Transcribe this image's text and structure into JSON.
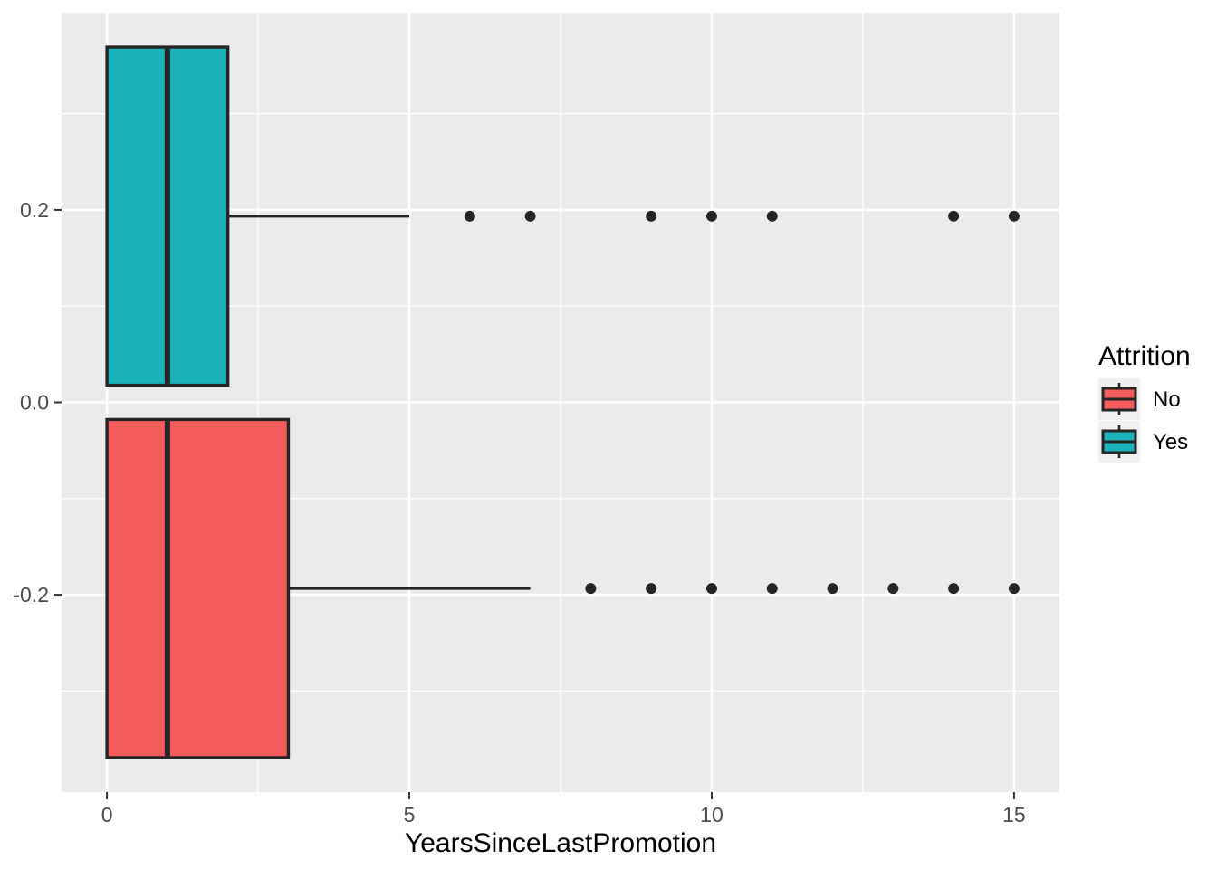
{
  "chart_data": {
    "type": "boxplot",
    "orientation": "horizontal",
    "title": "",
    "xlabel": "YearsSinceLastPromotion",
    "ylabel": "",
    "xlim": [
      -0.75,
      15.75
    ],
    "ylim": [
      -0.405,
      0.405
    ],
    "x_major_ticks": [
      0,
      5,
      10,
      15
    ],
    "x_minor_ticks": [
      2.5,
      7.5,
      12.5
    ],
    "y_major_ticks": [
      {
        "value": 0.2,
        "label": "0.2"
      },
      {
        "value": 0.0,
        "label": "0.0"
      },
      {
        "value": -0.2,
        "label": "-0.2"
      }
    ],
    "y_minor_ticks": [
      0.3,
      0.1,
      -0.1,
      -0.3
    ],
    "grid": true,
    "series": [
      {
        "name": "Yes",
        "fill": "#1BB3B9",
        "y_center": 0.1935,
        "box_half_height": 0.1757,
        "min": 0,
        "q1": 0,
        "median": 1,
        "q3": 2,
        "whisker_max": 5,
        "outliers": [
          6,
          7,
          9,
          10,
          11,
          14,
          15
        ]
      },
      {
        "name": "No",
        "fill": "#F45B5A",
        "y_center": -0.1935,
        "box_half_height": 0.1757,
        "min": 0,
        "q1": 0,
        "median": 1,
        "q3": 3,
        "whisker_max": 7,
        "outliers": [
          8,
          9,
          10,
          11,
          12,
          13,
          14,
          15
        ]
      }
    ],
    "legend": {
      "title": "Attrition",
      "position": "right",
      "entries": [
        {
          "label": "No",
          "color": "#F45B5A"
        },
        {
          "label": "Yes",
          "color": "#1BB3B9"
        }
      ]
    },
    "style": {
      "panel_bg": "#EBEBEB",
      "grid_color": "#FFFFFF",
      "outline_color": "#252525",
      "tick_mark_color": "#333333",
      "axis_text_color": "#4D4D4D",
      "title_text_color": "#000000",
      "legend_key_bg": "#F0F0F0"
    }
  }
}
